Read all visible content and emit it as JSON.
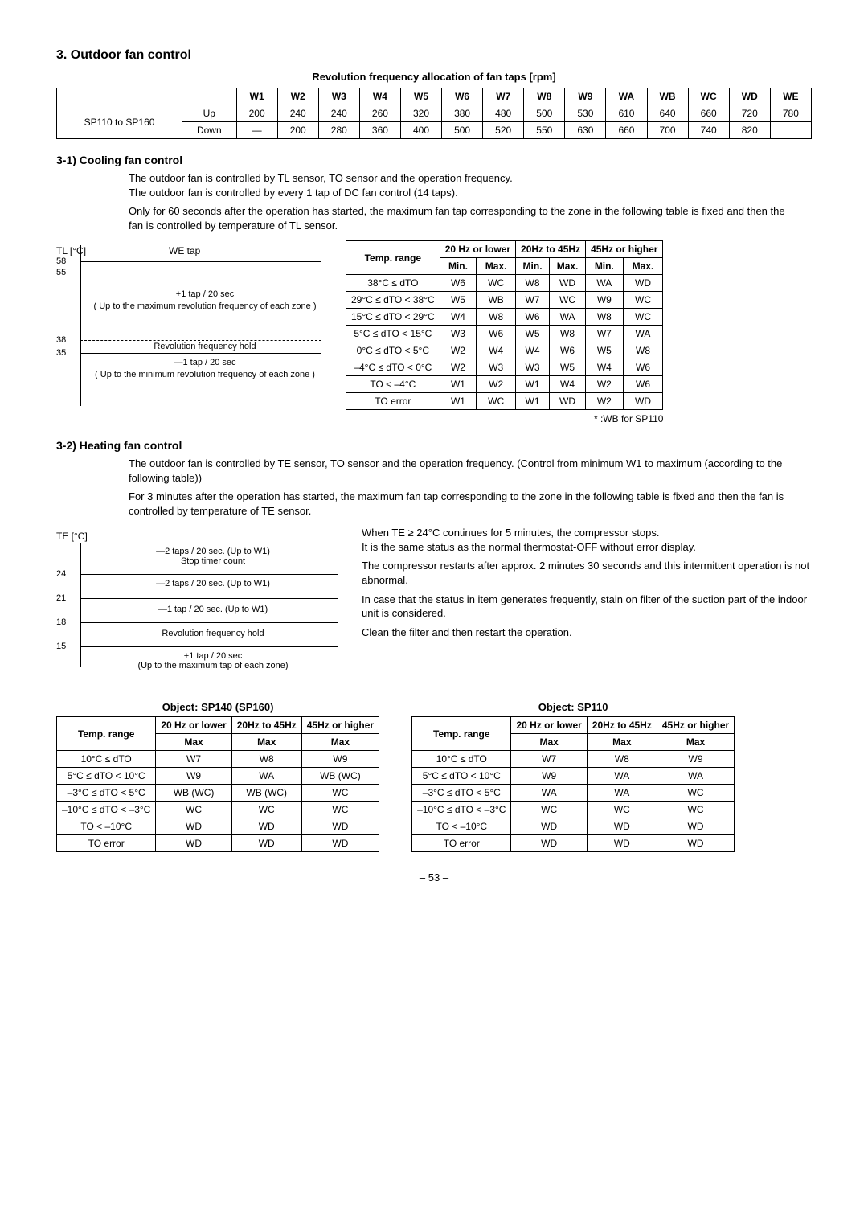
{
  "section": {
    "title": "3. Outdoor fan control"
  },
  "fanTable": {
    "caption": "Revolution frequency allocation of fan taps [rpm]",
    "cols": [
      "",
      "",
      "W1",
      "W2",
      "W3",
      "W4",
      "W5",
      "W6",
      "W7",
      "W8",
      "W9",
      "WA",
      "WB",
      "WC",
      "WD",
      "WE"
    ],
    "rows": [
      [
        "SP110 to SP160",
        "Up",
        "200",
        "240",
        "240",
        "260",
        "320",
        "380",
        "480",
        "500",
        "530",
        "610",
        "640",
        "660",
        "720",
        "780"
      ],
      [
        "",
        "Down",
        "—",
        "200",
        "280",
        "360",
        "400",
        "500",
        "520",
        "550",
        "630",
        "660",
        "700",
        "740",
        "820",
        ""
      ]
    ]
  },
  "cooling": {
    "heading": "3-1)  Cooling fan control",
    "p1": "The outdoor fan is controlled by TL sensor, TO sensor and the operation frequency.",
    "p2": "The outdoor fan is controlled by every 1 tap of DC fan control (14 taps).",
    "p3": "Only for 60 seconds after the operation has started, the maximum fan tap corresponding to the zone in the following table is fixed and then the fan is controlled by temperature of TL sensor."
  },
  "coolDiagram": {
    "ylabel": "TL [°C]",
    "weTap": "WE tap",
    "t58": "58",
    "t55": "55",
    "t38": "38",
    "t35": "35",
    "l1": "+1 tap / 20 sec",
    "l2": "( Up to the maximum revolution frequency of each zone )",
    "l3": "Revolution frequency hold",
    "l4": "—1 tap / 20 sec",
    "l5": "( Up to the minimum revolution frequency of each zone )"
  },
  "coolTable": {
    "head1": "Temp. range",
    "head2": "20 Hz or lower",
    "head3": "20Hz to 45Hz",
    "head4": "45Hz or higher",
    "min": "Min.",
    "max": "Max.",
    "rows": [
      [
        "38°C ≤ dTO",
        "W6",
        "WC",
        "W8",
        "WD",
        "WA",
        "WD"
      ],
      [
        "29°C ≤ dTO < 38°C",
        "W5",
        "WB",
        "W7",
        "WC",
        "W9",
        "WC"
      ],
      [
        "15°C ≤ dTO < 29°C",
        "W4",
        "W8",
        "W6",
        "WA",
        "W8",
        "WC"
      ],
      [
        "5°C ≤ dTO < 15°C",
        "W3",
        "W6",
        "W5",
        "W8",
        "W7",
        "WA"
      ],
      [
        "0°C ≤ dTO < 5°C",
        "W2",
        "W4",
        "W4",
        "W6",
        "W5",
        "W8"
      ],
      [
        "–4°C ≤ dTO < 0°C",
        "W2",
        "W3",
        "W3",
        "W5",
        "W4",
        "W6"
      ],
      [
        "TO < –4°C",
        "W1",
        "W2",
        "W1",
        "W4",
        "W2",
        "W6"
      ],
      [
        "TO error",
        "W1",
        "WC",
        "W1",
        "WD",
        "W2",
        "WD"
      ]
    ],
    "note": "* :WB for SP110"
  },
  "heating": {
    "heading": "3-2)  Heating fan control",
    "p1": "The outdoor fan is controlled by TE sensor, TO sensor and the operation frequency. (Control from minimum W1 to maximum (according to the following table))",
    "p2": "For 3 minutes after the operation has started, the maximum fan tap corresponding to the zone in the following table is fixed and then the fan is controlled by temperature of TE sensor."
  },
  "heatDiagram": {
    "ylabel": "TE [°C]",
    "t24": "24",
    "t21": "21",
    "t18": "18",
    "t15": "15",
    "z1": "—2 taps / 20 sec. (Up to W1)\nStop timer count",
    "z2": "—2 taps / 20 sec. (Up to W1)",
    "z3": "—1 tap / 20 sec. (Up to W1)",
    "z4": "Revolution frequency hold",
    "z5": "+1 tap / 20 sec\n(Up to the maximum tap of each zone)"
  },
  "heatNotes": {
    "n1": "When TE ≥ 24°C continues for 5 minutes, the compressor stops.",
    "n2": "It is the same status as the normal thermostat-OFF without error display.",
    "n3": "The compressor restarts after approx. 2 minutes 30 seconds and this intermittent operation is not abnormal.",
    "n4": "In case that the status in item         generates frequently, stain on filter of the suction part of the indoor unit is considered.",
    "n5": "Clean the filter and then restart the operation."
  },
  "heatTableA": {
    "caption": "Object: SP140 (SP160)",
    "head1": "Temp. range",
    "head2": "20 Hz or lower",
    "head3": "20Hz to 45Hz",
    "head4": "45Hz or higher",
    "max": "Max",
    "rows": [
      [
        "10°C ≤ dTO",
        "W7",
        "W8",
        "W9"
      ],
      [
        "5°C ≤ dTO < 10°C",
        "W9",
        "WA",
        "WB (WC)"
      ],
      [
        "–3°C ≤ dTO < 5°C",
        "WB (WC)",
        "WB (WC)",
        "WC"
      ],
      [
        "–10°C ≤ dTO < –3°C",
        "WC",
        "WC",
        "WC"
      ],
      [
        "TO < –10°C",
        "WD",
        "WD",
        "WD"
      ],
      [
        "TO error",
        "WD",
        "WD",
        "WD"
      ]
    ]
  },
  "heatTableB": {
    "caption": "Object: SP110",
    "head1": "Temp. range",
    "head2": "20 Hz or lower",
    "head3": "20Hz to 45Hz",
    "head4": "45Hz or higher",
    "max": "Max",
    "rows": [
      [
        "10°C ≤ dTO",
        "W7",
        "W8",
        "W9"
      ],
      [
        "5°C ≤ dTO < 10°C",
        "W9",
        "WA",
        "WA"
      ],
      [
        "–3°C ≤ dTO < 5°C",
        "WA",
        "WA",
        "WC"
      ],
      [
        "–10°C ≤ dTO < –3°C",
        "WC",
        "WC",
        "WC"
      ],
      [
        "TO < –10°C",
        "WD",
        "WD",
        "WD"
      ],
      [
        "TO error",
        "WD",
        "WD",
        "WD"
      ]
    ]
  },
  "pageNum": "– 53 –"
}
